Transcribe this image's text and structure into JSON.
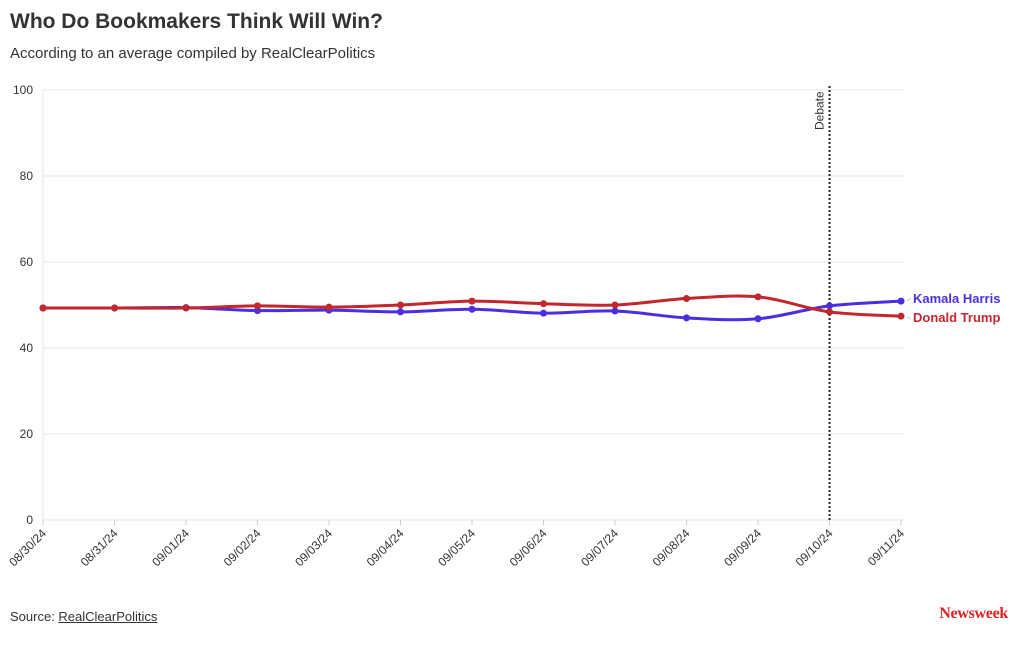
{
  "header": {
    "title": "Who Do Bookmakers Think Will Win?",
    "subtitle": "According to an average compiled by RealClearPolitics"
  },
  "footer": {
    "source_label": "Source: ",
    "source_link": "RealClearPolitics",
    "logo": "Newsweek"
  },
  "colors": {
    "harris": "#4b2ee0",
    "trump": "#c1272d",
    "grid": "#e6e6e6",
    "logo": "#e02020"
  },
  "chart_data": {
    "type": "line",
    "title": "Who Do Bookmakers Think Will Win?",
    "xlabel": "",
    "ylabel": "",
    "ylim": [
      0,
      100
    ],
    "yticks": [
      0,
      20,
      40,
      60,
      80,
      100
    ],
    "grid": true,
    "legend": "right-end labels",
    "categories": [
      "08/30/24",
      "08/31/24",
      "09/01/24",
      "09/02/24",
      "09/03/24",
      "09/04/24",
      "09/05/24",
      "09/06/24",
      "09/07/24",
      "09/08/24",
      "09/09/24",
      "09/10/24",
      "09/11/24"
    ],
    "series": [
      {
        "name": "Kamala Harris",
        "color": "#4b2ee0",
        "values": [
          49.3,
          49.3,
          49.4,
          48.7,
          48.8,
          48.4,
          49.0,
          48.1,
          48.6,
          47.0,
          46.8,
          49.8,
          50.9
        ]
      },
      {
        "name": "Donald Trump",
        "color": "#c1272d",
        "values": [
          49.3,
          49.3,
          49.3,
          49.8,
          49.5,
          50.0,
          50.9,
          50.3,
          50.0,
          51.5,
          51.9,
          48.4,
          47.4
        ]
      }
    ],
    "annotations": [
      {
        "x": "09/10/24",
        "label": "Debate",
        "style": "dotted vertical line"
      }
    ]
  }
}
